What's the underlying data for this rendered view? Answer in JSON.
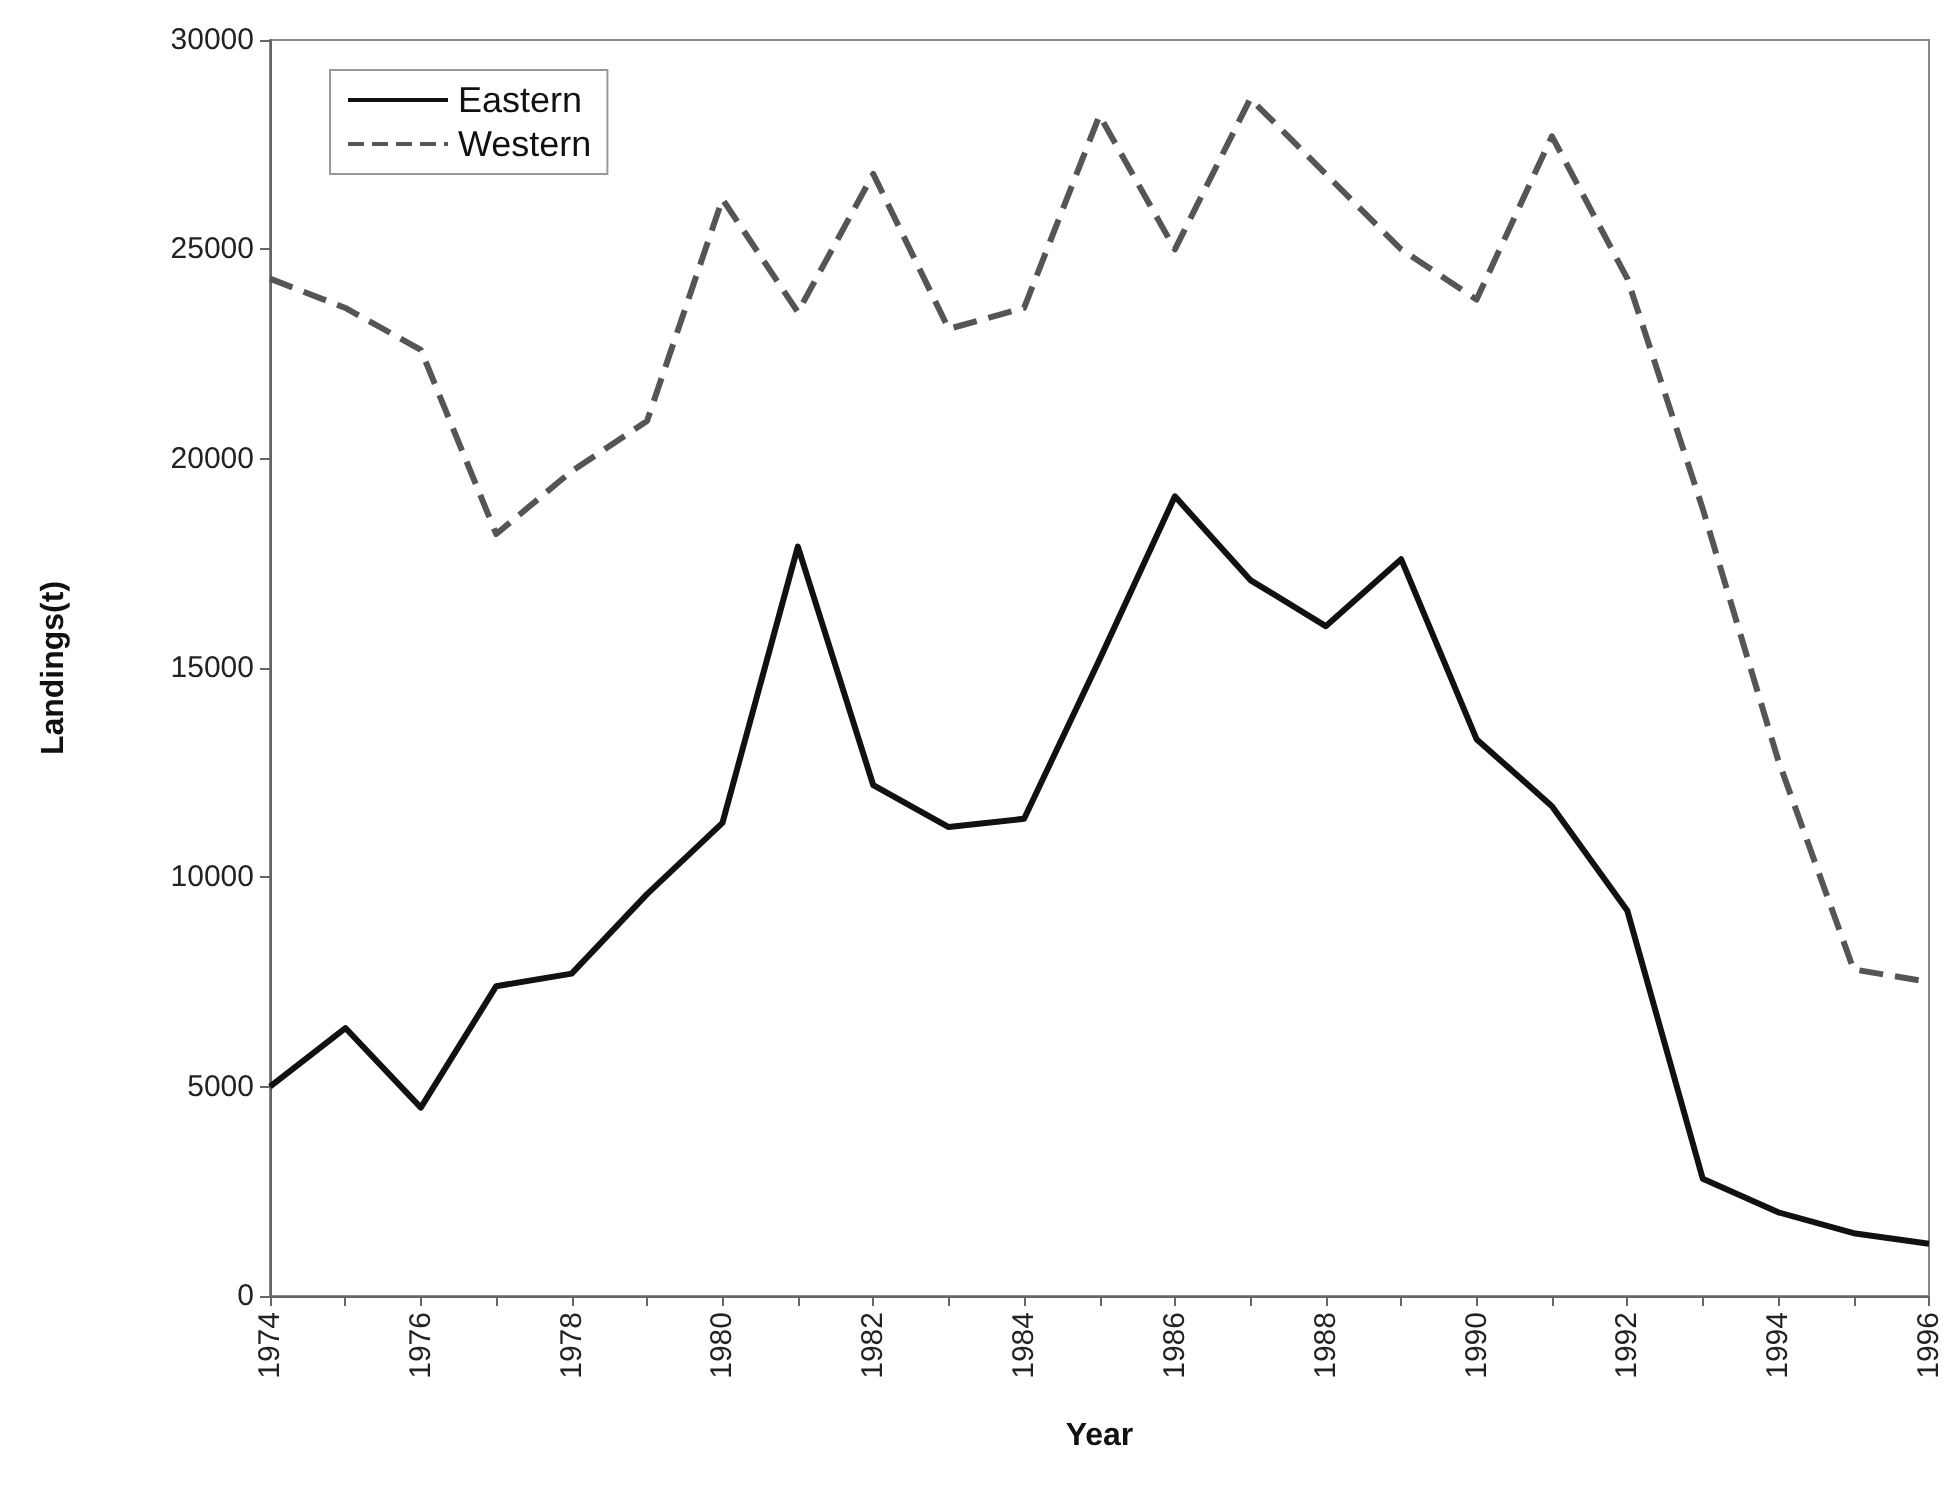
{
  "chart_data": {
    "type": "line",
    "xlabel": "Year",
    "ylabel": "Landings(t)",
    "x": [
      1974,
      1975,
      1976,
      1977,
      1978,
      1979,
      1980,
      1981,
      1982,
      1983,
      1984,
      1985,
      1986,
      1987,
      1988,
      1989,
      1990,
      1991,
      1992,
      1993,
      1994,
      1995,
      1996
    ],
    "series": [
      {
        "name": "Eastern",
        "color": "#111111",
        "line_style": "solid",
        "values": [
          5000,
          6400,
          4500,
          7400,
          7700,
          9600,
          11300,
          17900,
          12200,
          11200,
          11400,
          15200,
          19100,
          17100,
          16000,
          17600,
          13300,
          11700,
          9200,
          2800,
          2000,
          1500,
          1250
        ]
      },
      {
        "name": "Western",
        "color": "#555555",
        "line_style": "dashed",
        "values": [
          24300,
          23600,
          22600,
          18200,
          19700,
          20900,
          26200,
          23500,
          26800,
          23100,
          23600,
          28200,
          25000,
          28600,
          26800,
          25000,
          23800,
          27700,
          24300,
          18800,
          12800,
          7800,
          7500
        ]
      }
    ],
    "xlim": [
      1974,
      1996
    ],
    "xticks": [
      1974,
      {
        "value": 1975,
        "label": null
      },
      1976,
      {
        "value": 1977,
        "label": null
      },
      1978,
      {
        "value": 1979,
        "label": null
      },
      1980,
      {
        "value": 1981,
        "label": null
      },
      1982,
      {
        "value": 1983,
        "label": null
      },
      1984,
      {
        "value": 1985,
        "label": null
      },
      1986,
      {
        "value": 1987,
        "label": null
      },
      1988,
      {
        "value": 1989,
        "label": null
      },
      1990,
      {
        "value": 1991,
        "label": null
      },
      1992,
      {
        "value": 1993,
        "label": null
      },
      1994,
      {
        "value": 1995,
        "label": null
      },
      1996
    ],
    "ylim": [
      0,
      30000
    ],
    "yticks": [
      0,
      5000,
      10000,
      15000,
      20000,
      25000,
      30000
    ],
    "grid": false,
    "legend": "top left",
    "marker": "none"
  }
}
